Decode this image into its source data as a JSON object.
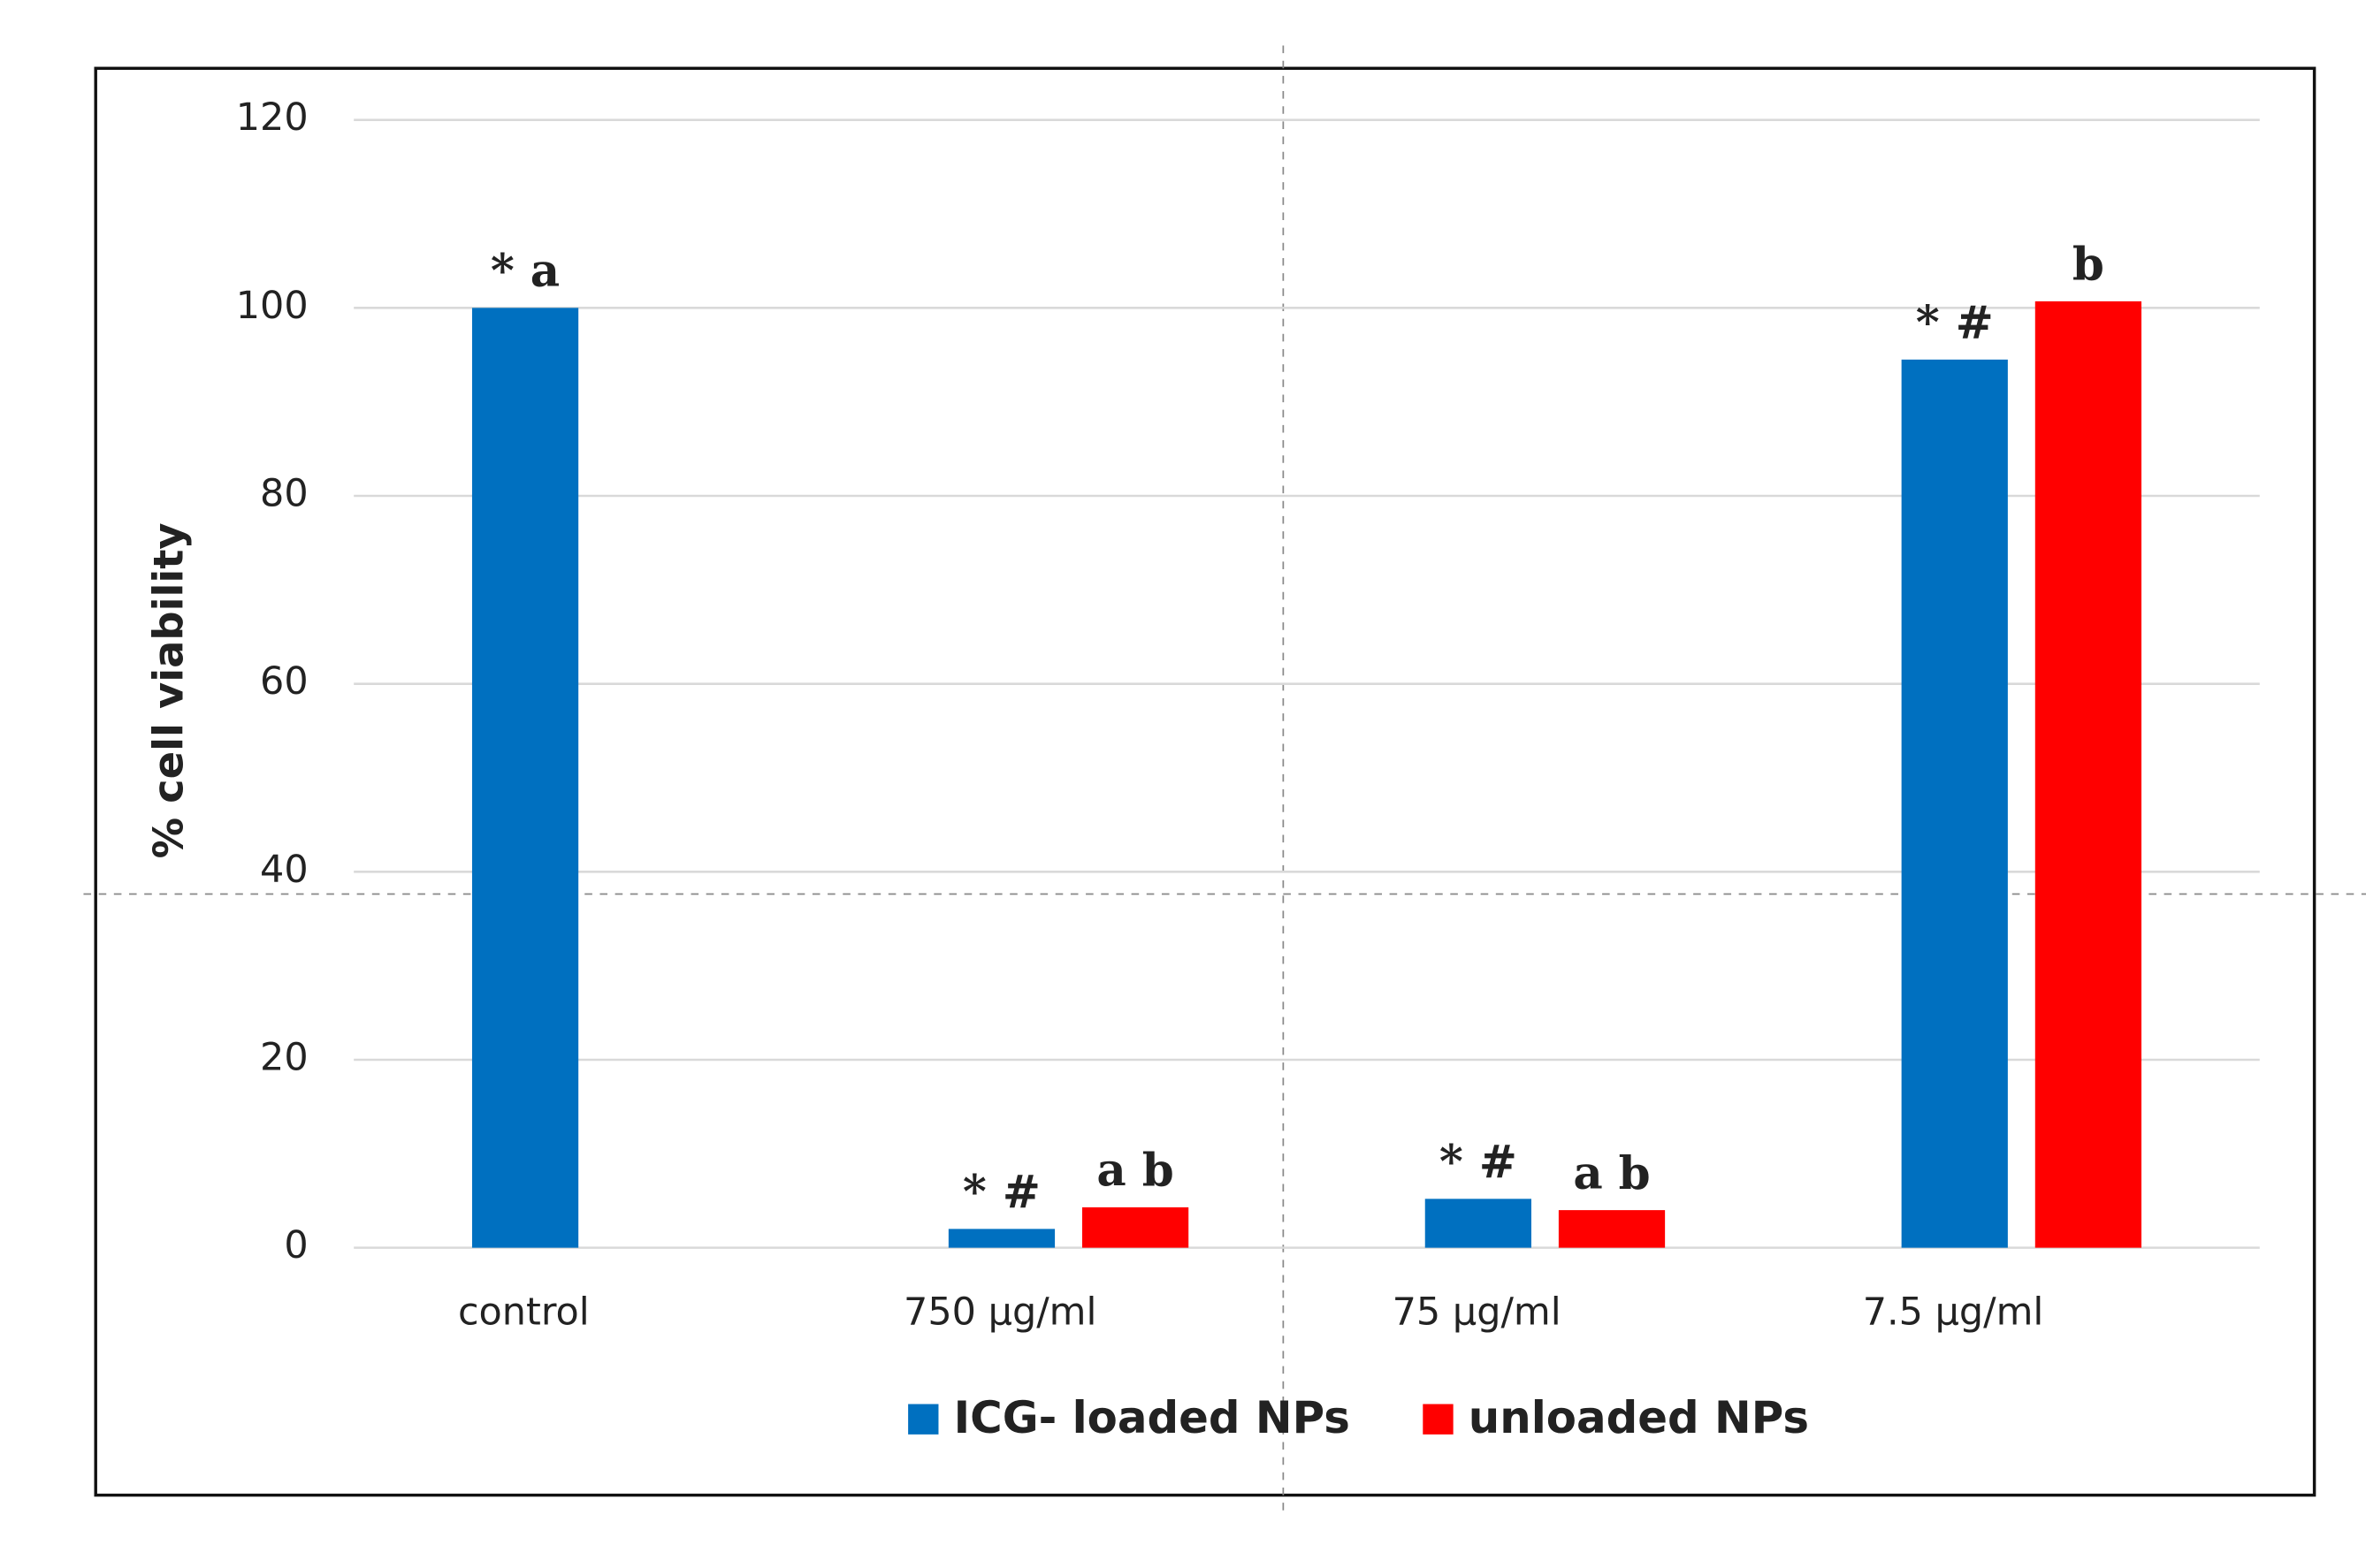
{
  "chart_data": {
    "type": "bar",
    "y_label": "% cell viability",
    "categories": [
      "control",
      "750 µg/ml",
      "75 µg/ml",
      "7.5 µg/ml"
    ],
    "series": [
      {
        "name": "ICG- loaded NPs",
        "color": "#0070c0",
        "values": [
          100,
          2,
          5.2,
          94.5
        ],
        "annotations": [
          "* a",
          "* #",
          "* #",
          "* #"
        ]
      },
      {
        "name": "unloaded NPs",
        "color": "#ff0000",
        "values": [
          null,
          4.3,
          4,
          100.7
        ],
        "annotations": [
          null,
          "a b",
          "a b",
          "b"
        ]
      }
    ],
    "ylim": [
      0,
      120
    ],
    "yticks": [
      0,
      20,
      40,
      60,
      80,
      100,
      120
    ],
    "grid": true,
    "legend": "bottom"
  }
}
